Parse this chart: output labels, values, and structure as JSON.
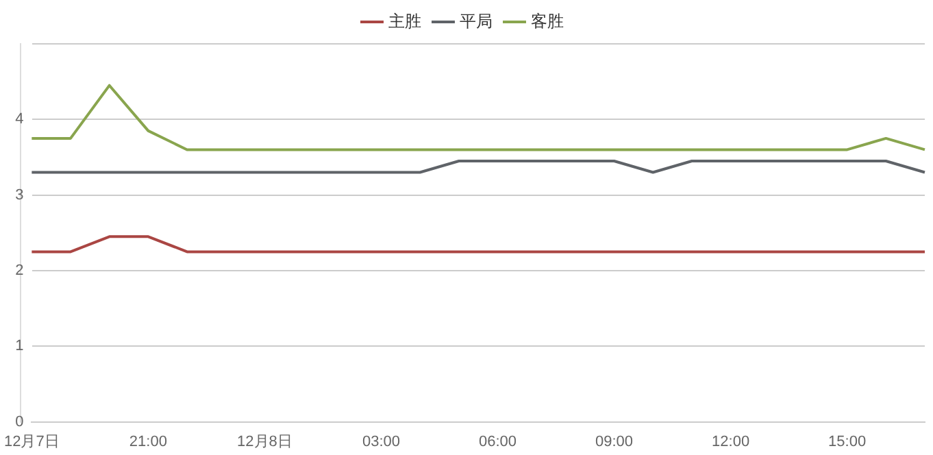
{
  "chart_data": {
    "type": "line",
    "categories": [
      "12月7日",
      null,
      null,
      "21:00",
      null,
      null,
      "12月8日",
      null,
      null,
      "03:00",
      null,
      null,
      "06:00",
      null,
      null,
      "09:00",
      null,
      null,
      "12:00",
      null,
      null,
      "15:00",
      null,
      null
    ],
    "series": [
      {
        "name": "主胜",
        "color": "#aa4643",
        "values": [
          2.25,
          2.25,
          2.45,
          2.45,
          2.25,
          2.25,
          2.25,
          2.25,
          2.25,
          2.25,
          2.25,
          2.25,
          2.25,
          2.25,
          2.25,
          2.25,
          2.25,
          2.25,
          2.25,
          2.25,
          2.25,
          2.25,
          2.25,
          2.25
        ]
      },
      {
        "name": "平局",
        "color": "#5f6368",
        "values": [
          3.3,
          3.3,
          3.3,
          3.3,
          3.3,
          3.3,
          3.3,
          3.3,
          3.3,
          3.3,
          3.3,
          3.45,
          3.45,
          3.45,
          3.45,
          3.45,
          3.3,
          3.45,
          3.45,
          3.45,
          3.45,
          3.45,
          3.45,
          3.3
        ]
      },
      {
        "name": "客胜",
        "color": "#89a54e",
        "values": [
          3.75,
          3.75,
          4.45,
          3.85,
          3.6,
          3.6,
          3.6,
          3.6,
          3.6,
          3.6,
          3.6,
          3.6,
          3.6,
          3.6,
          3.6,
          3.6,
          3.6,
          3.6,
          3.6,
          3.6,
          3.6,
          3.6,
          3.75,
          3.6
        ]
      }
    ],
    "ylim": [
      0,
      5
    ],
    "yticks": [
      0,
      1,
      2,
      3,
      4,
      {
        "value": 5,
        "label": null
      }
    ],
    "grid": "y",
    "legend": "top",
    "marker": "none",
    "line_style": "solid"
  }
}
